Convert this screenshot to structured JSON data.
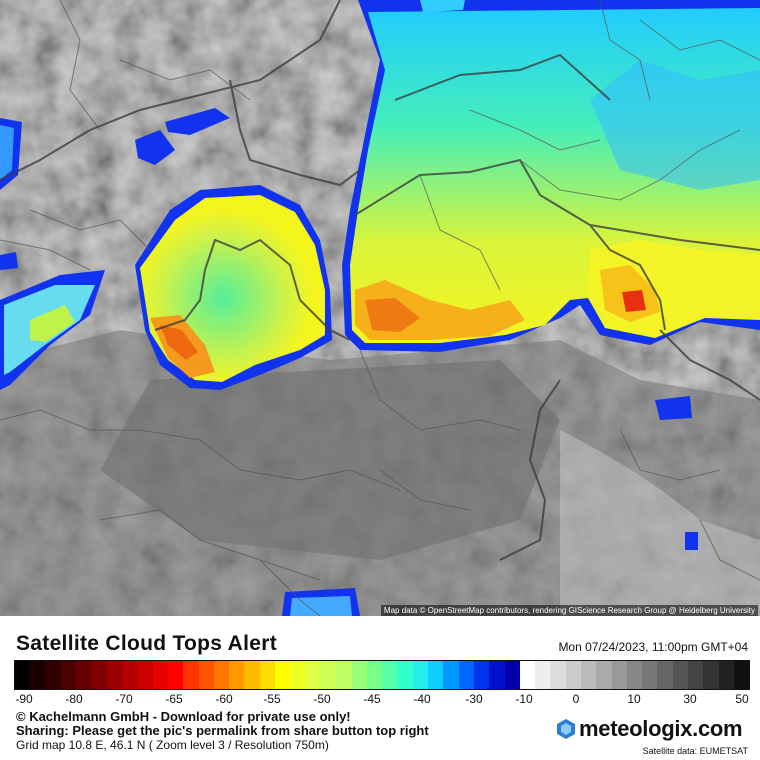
{
  "map": {
    "attribution": "Map data © OpenStreetMap contributors, rendering GIScience Research Group @ Heidelberg University"
  },
  "legend": {
    "title": "Satellite Cloud Tops Alert",
    "datetime": "Mon 07/24/2023, 11:00pm GMT+04",
    "ticks": [
      "-90",
      "-80",
      "-70",
      "-65",
      "-60",
      "-55",
      "-50",
      "-45",
      "-40",
      "-30",
      "-10",
      "0",
      "10",
      "30",
      "50"
    ],
    "colors": {
      "dark": [
        "#000000",
        "#1a0000",
        "#330000",
        "#4d0000",
        "#660000",
        "#800000",
        "#990000",
        "#b30000",
        "#cc0000",
        "#e60000",
        "#ff0000"
      ],
      "warm": [
        "#ff3300",
        "#ff5500",
        "#ff7700",
        "#ff9900",
        "#ffbb00",
        "#ffdd00",
        "#ffff00",
        "#eeff22",
        "#ddff44",
        "#ccff55",
        "#bbff66",
        "#99ff77",
        "#77ff88",
        "#55ffaa",
        "#33ffcc",
        "#22eeee",
        "#11ccff",
        "#0099ff",
        "#0066ff",
        "#0033ee",
        "#0011cc",
        "#0000aa"
      ],
      "gray": [
        "#ffffff",
        "#eeeeee",
        "#dddddd",
        "#cccccc",
        "#bbbbbb",
        "#aaaaaa",
        "#999999",
        "#888888",
        "#777777",
        "#666666",
        "#555555",
        "#444444",
        "#333333",
        "#222222",
        "#111111"
      ]
    }
  },
  "notes": {
    "copyright": "© Kachelmann GmbH - Download for private use only!",
    "sharing": "Sharing: Please get the pic's permalink from share button top right",
    "grid": "Grid map 10.8 E, 46.1 N ( Zoom level 3 / Resolution 750m)"
  },
  "brand": {
    "logo_text": "meteologix.com",
    "logo_icon": "hexagon-icon"
  },
  "satellite_credit": "Satellite data: EUMETSAT"
}
